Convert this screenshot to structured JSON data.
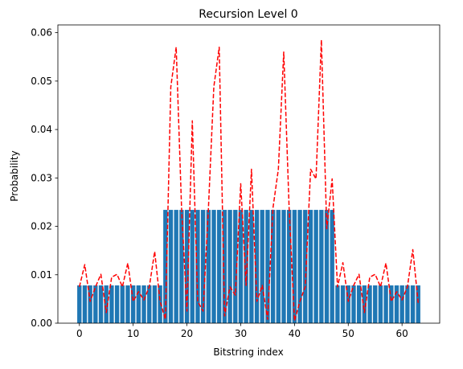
{
  "chart_data": {
    "type": "bar",
    "title": "Recursion Level 0",
    "xlabel": "Bitstring index",
    "ylabel": "Probability",
    "xlim": [
      -4,
      67
    ],
    "ylim": [
      0,
      0.0616
    ],
    "xticks": [
      0,
      10,
      20,
      30,
      40,
      50,
      60
    ],
    "yticks": [
      0.0,
      0.01,
      0.02,
      0.03,
      0.04,
      0.05,
      0.06
    ],
    "xtick_labels": [
      "0",
      "10",
      "20",
      "30",
      "40",
      "50",
      "60"
    ],
    "ytick_labels": [
      "0.00",
      "0.01",
      "0.02",
      "0.03",
      "0.04",
      "0.05",
      "0.06"
    ],
    "grid": false,
    "series": [
      {
        "type": "bar",
        "color": "#1f77b4",
        "x": [
          0,
          1,
          2,
          3,
          4,
          5,
          6,
          7,
          8,
          9,
          10,
          11,
          12,
          13,
          14,
          15,
          16,
          17,
          18,
          19,
          20,
          21,
          22,
          23,
          24,
          25,
          26,
          27,
          28,
          29,
          30,
          31,
          32,
          33,
          34,
          35,
          36,
          37,
          38,
          39,
          40,
          41,
          42,
          43,
          44,
          45,
          46,
          47,
          48,
          49,
          50,
          51,
          52,
          53,
          54,
          55,
          56,
          57,
          58,
          59,
          60,
          61,
          62,
          63
        ],
        "values": [
          0.0078,
          0.0078,
          0.0078,
          0.0078,
          0.0078,
          0.0078,
          0.0078,
          0.0078,
          0.0078,
          0.0078,
          0.0078,
          0.0078,
          0.0078,
          0.0078,
          0.0078,
          0.0078,
          0.0234,
          0.0234,
          0.0234,
          0.0234,
          0.0234,
          0.0234,
          0.0234,
          0.0234,
          0.0234,
          0.0234,
          0.0234,
          0.0234,
          0.0234,
          0.0234,
          0.0234,
          0.0234,
          0.0234,
          0.0234,
          0.0234,
          0.0234,
          0.0234,
          0.0234,
          0.0234,
          0.0234,
          0.0234,
          0.0234,
          0.0234,
          0.0234,
          0.0234,
          0.0234,
          0.0234,
          0.0234,
          0.0078,
          0.0078,
          0.0078,
          0.0078,
          0.0078,
          0.0078,
          0.0078,
          0.0078,
          0.0078,
          0.0078,
          0.0078,
          0.0078,
          0.0078,
          0.0078,
          0.0078,
          0.0078
        ]
      },
      {
        "type": "line",
        "style": "dashed",
        "color": "#ff0000",
        "x": [
          0,
          1,
          2,
          3,
          4,
          5,
          6,
          7,
          8,
          9,
          10,
          11,
          12,
          13,
          14,
          15,
          16,
          17,
          18,
          19,
          20,
          21,
          22,
          23,
          24,
          25,
          26,
          27,
          28,
          29,
          30,
          31,
          32,
          33,
          34,
          35,
          36,
          37,
          38,
          39,
          40,
          41,
          42,
          43,
          44,
          45,
          46,
          47,
          48,
          49,
          50,
          51,
          52,
          53,
          54,
          55,
          56,
          57,
          58,
          59,
          60,
          61,
          62,
          63
        ],
        "values": [
          0.0075,
          0.0121,
          0.0045,
          0.0075,
          0.0101,
          0.0022,
          0.0095,
          0.0101,
          0.0075,
          0.0124,
          0.0045,
          0.0065,
          0.0048,
          0.0075,
          0.0148,
          0.0045,
          0.0008,
          0.0488,
          0.057,
          0.0238,
          0.0025,
          0.0418,
          0.0045,
          0.0025,
          0.0238,
          0.0488,
          0.057,
          0.0015,
          0.0075,
          0.0058,
          0.0288,
          0.0078,
          0.0318,
          0.0045,
          0.0078,
          0.0008,
          0.0238,
          0.0318,
          0.056,
          0.0238,
          0.0005,
          0.0045,
          0.0075,
          0.0318,
          0.0298,
          0.0585,
          0.0195,
          0.0298,
          0.0075,
          0.0125,
          0.0045,
          0.0078,
          0.0101,
          0.0022,
          0.0095,
          0.0101,
          0.0075,
          0.0124,
          0.0045,
          0.0065,
          0.0048,
          0.0075,
          0.0152,
          0.0042
        ]
      }
    ]
  }
}
